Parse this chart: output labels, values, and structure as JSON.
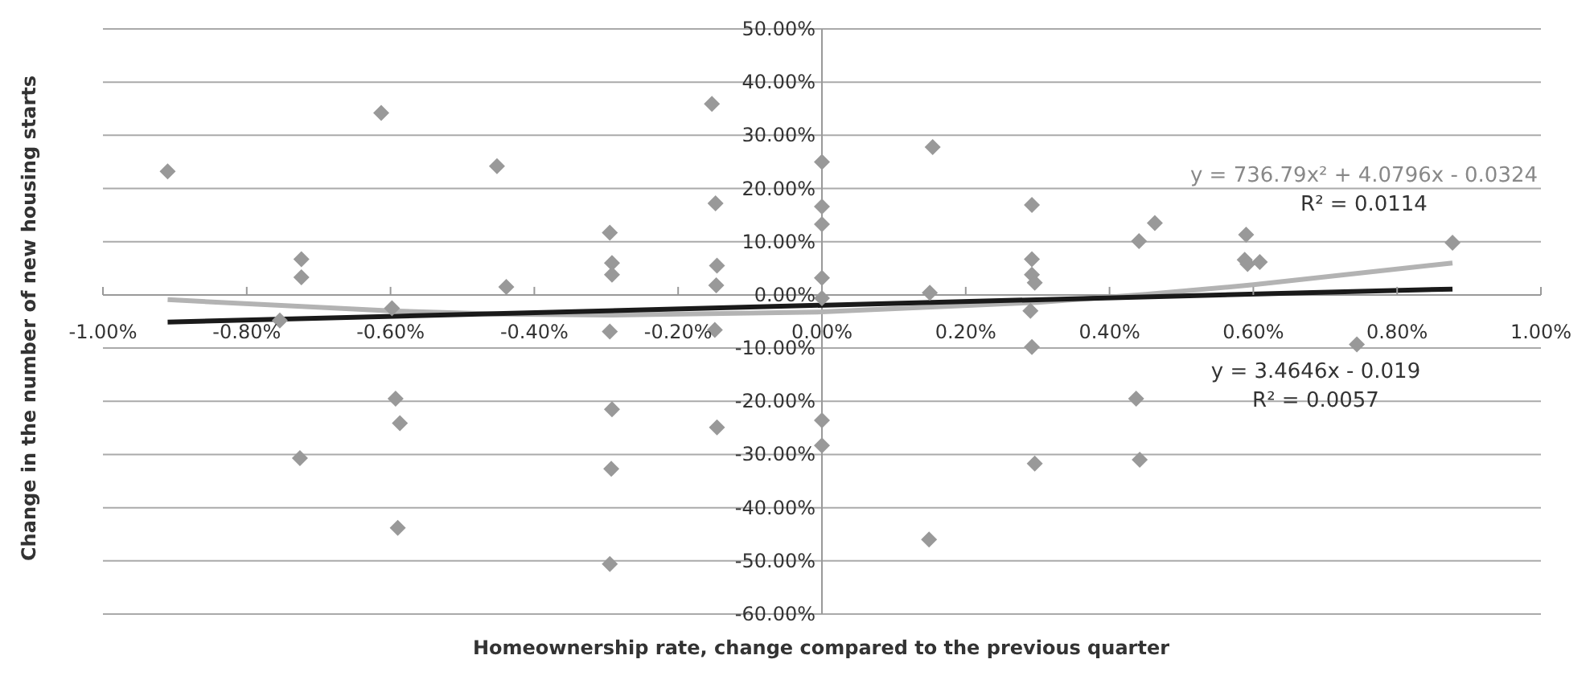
{
  "chart_data": {
    "type": "scatter",
    "xlabel": "Homeownership rate, change compared to the previous quarter",
    "ylabel": "Change in the number of new housing starts",
    "xlim": [
      -1,
      1
    ],
    "ylim": [
      -60,
      50
    ],
    "xticks": [
      {
        "value": -1,
        "label": "-1.00%"
      },
      {
        "value": -0.8,
        "label": "-0.80%"
      },
      {
        "value": -0.6,
        "label": "-0.60%"
      },
      {
        "value": -0.4,
        "label": "-0.40%"
      },
      {
        "value": -0.2,
        "label": "-0.20%"
      },
      {
        "value": 0,
        "label": "0.00%"
      },
      {
        "value": 0.2,
        "label": "0.20%"
      },
      {
        "value": 0.4,
        "label": "0.40%"
      },
      {
        "value": 0.6,
        "label": "0.60%"
      },
      {
        "value": 0.8,
        "label": "0.80%"
      },
      {
        "value": 1,
        "label": "1.00%"
      }
    ],
    "yticks": [
      {
        "value": -60,
        "label": "-60.00%"
      },
      {
        "value": -50,
        "label": "-50.00%"
      },
      {
        "value": -40,
        "label": "-40.00%"
      },
      {
        "value": -30,
        "label": "-30.00%"
      },
      {
        "value": -20,
        "label": "-20.00%"
      },
      {
        "value": -10,
        "label": "-10.00%"
      },
      {
        "value": 0,
        "label": "0.00%"
      },
      {
        "value": 10,
        "label": "10.00%"
      },
      {
        "value": 20,
        "label": "20.00%"
      },
      {
        "value": 30,
        "label": "30.00%"
      },
      {
        "value": 40,
        "label": "40.00%"
      },
      {
        "value": 50,
        "label": "50.00%"
      }
    ],
    "grid": "y",
    "legend": false,
    "marker": "diamond",
    "series": [
      {
        "color": "#999999",
        "x": [
          -0.91,
          -0.613,
          -0.452,
          -0.724,
          -0.724,
          -0.439,
          -0.754,
          -0.598,
          -0.593,
          -0.587,
          -0.726,
          -0.59,
          -0.295,
          -0.292,
          -0.292,
          -0.295,
          -0.292,
          -0.293,
          -0.295,
          -0.153,
          -0.148,
          -0.146,
          -0.147,
          -0.149,
          -0.146,
          0,
          0,
          0,
          0,
          0,
          0,
          0,
          0.154,
          0.15,
          0.149,
          0.292,
          0.292,
          0.292,
          0.296,
          0.29,
          0.292,
          0.296,
          0.441,
          0.463,
          0.59,
          0.588,
          0.592,
          0.609,
          0.877,
          0.744,
          0.437,
          0.442
        ],
        "values": [
          23.2,
          34.2,
          24.2,
          6.7,
          3.3,
          1.5,
          -4.8,
          -2.5,
          -19.5,
          -24.1,
          -30.7,
          -43.8,
          11.7,
          6.0,
          3.8,
          -6.9,
          -21.5,
          -32.7,
          -50.6,
          35.9,
          17.2,
          5.5,
          1.8,
          -6.6,
          -24.9,
          25.0,
          16.6,
          13.3,
          3.2,
          -0.6,
          -23.6,
          -28.3,
          27.8,
          0.4,
          -46.0,
          16.9,
          6.7,
          3.8,
          2.3,
          -3.0,
          -9.8,
          -31.7,
          10.1,
          13.5,
          11.3,
          6.6,
          5.8,
          6.2,
          9.8,
          -9.3,
          -19.5,
          -31.0
        ]
      },
      {
        "type": "line",
        "color": "#b3b3b3",
        "marker": "none",
        "x": [
          -0.91,
          -0.6,
          -0.45,
          -0.3,
          0,
          0.3,
          0.45,
          0.6,
          0.877
        ],
        "values": [
          -0.9,
          -3.0,
          -3.6,
          -3.8,
          -3.2,
          -1.4,
          0.1,
          1.9,
          6.0
        ]
      },
      {
        "type": "line",
        "color": "#1a1a1a",
        "marker": "none",
        "x": [
          -0.91,
          0.877
        ],
        "values": [
          -5.1,
          1.1
        ]
      }
    ],
    "annotations": [
      "y = 736.79x² + 4.0796x - 0.0324",
      "R² = 0.0114",
      "y = 3.4646x - 0.019",
      "R² = 0.0057"
    ]
  }
}
